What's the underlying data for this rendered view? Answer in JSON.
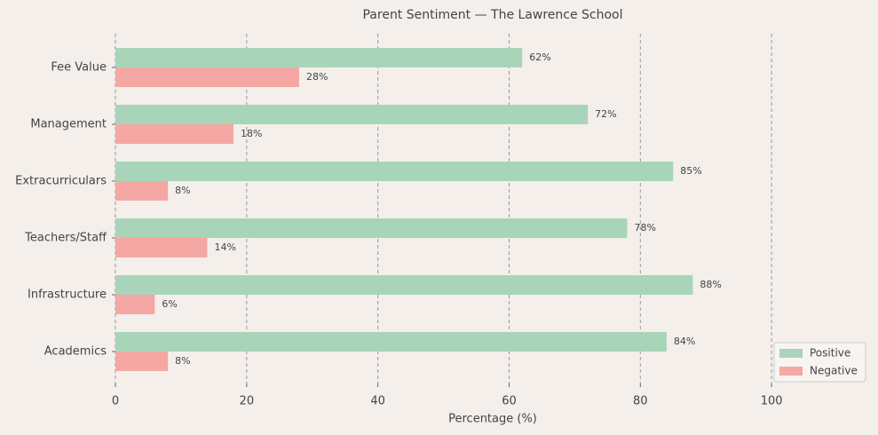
{
  "chart_data": {
    "type": "barh",
    "title": "Parent Sentiment — The Lawrence School",
    "xlabel": "Percentage (%)",
    "categories": [
      "Academics",
      "Infrastructure",
      "Teachers/Staff",
      "Extracurriculars",
      "Management",
      "Fee Value"
    ],
    "series": [
      {
        "name": "Positive",
        "color": "#a8d5ba",
        "values": [
          84,
          88,
          78,
          85,
          72,
          62
        ],
        "value_labels": [
          "84%",
          "88%",
          "78%",
          "85%",
          "72%",
          "62%"
        ]
      },
      {
        "name": "Negative",
        "color": "#f4a7a3",
        "values": [
          8,
          6,
          14,
          8,
          18,
          28
        ],
        "value_labels": [
          "8%",
          "6%",
          "14%",
          "8%",
          "18%",
          "28%"
        ]
      }
    ],
    "xlim": [
      0,
      115
    ],
    "xticks": [
      0,
      20,
      40,
      60,
      80,
      100
    ],
    "grid": true,
    "legend": "lower right"
  }
}
